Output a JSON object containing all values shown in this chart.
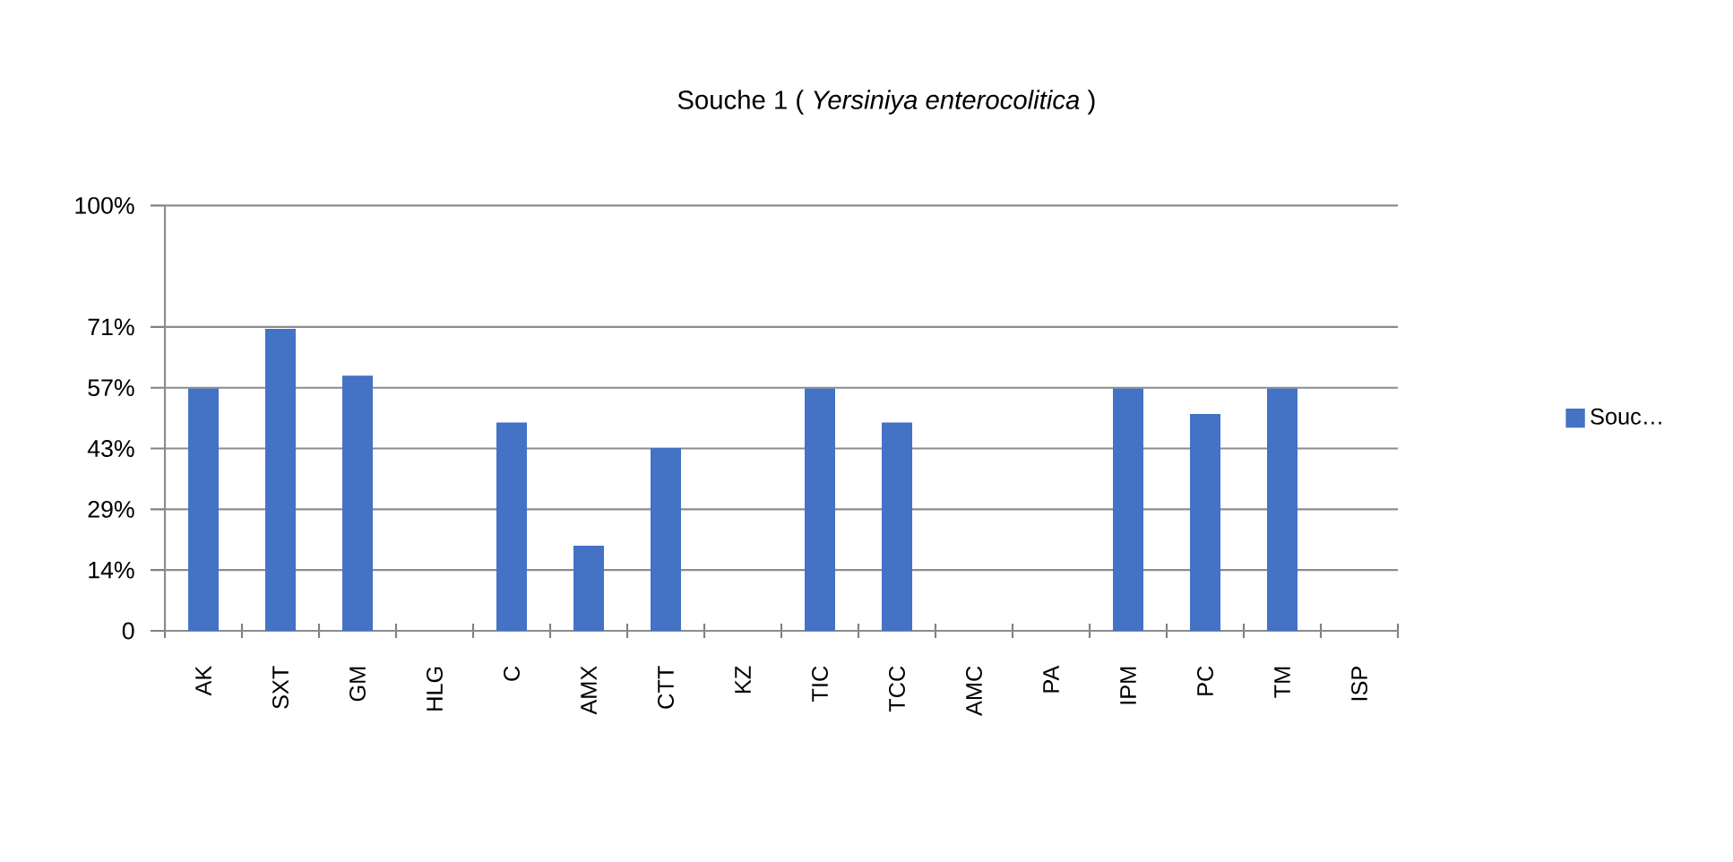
{
  "chart_data": {
    "type": "bar",
    "title": "Souche 1 ( *Yersiniya enterocolitica* )",
    "categories": [
      "AK",
      "SXT",
      "GM",
      "HLG",
      "C",
      "AMX",
      "CTT",
      "KZ",
      "TIC",
      "TCC",
      "AMC",
      "PA",
      "IPM",
      "PC",
      "TM",
      "ISP"
    ],
    "series": [
      {
        "name": "Souc…",
        "color": "#4472c4",
        "values": [
          57,
          71,
          60,
          0,
          49,
          20,
          43,
          0,
          57,
          49,
          0,
          0,
          57,
          51,
          57,
          0
        ]
      }
    ],
    "ylim": [
      0,
      100
    ],
    "yticks": [
      {
        "value": 0,
        "label": "0"
      },
      {
        "value": 14.29,
        "label": "14%"
      },
      {
        "value": 28.57,
        "label": "29%"
      },
      {
        "value": 42.86,
        "label": "43%"
      },
      {
        "value": 57.14,
        "label": "57%"
      },
      {
        "value": 71.43,
        "label": "71%"
      },
      {
        "value": 100,
        "label": "100%"
      }
    ],
    "grid": "y",
    "legend": "right"
  }
}
